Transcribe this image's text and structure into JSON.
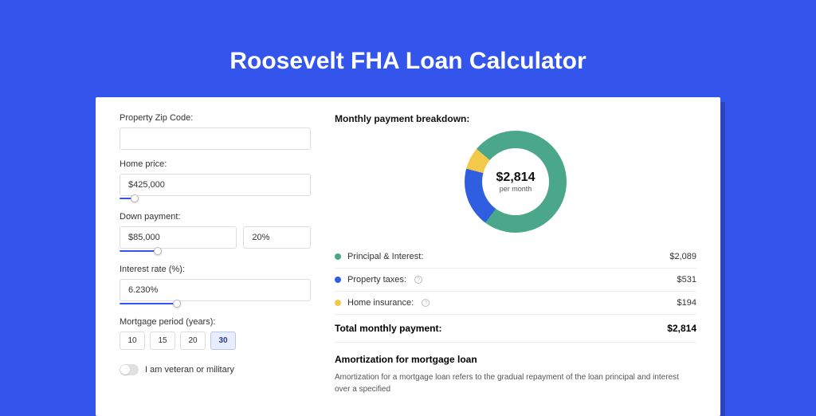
{
  "title": "Roosevelt FHA Loan Calculator",
  "colors": {
    "page_bg": "#3455eb",
    "card_bg": "#ffffff",
    "accent": "#3455eb"
  },
  "form": {
    "zip": {
      "label": "Property Zip Code:",
      "value": ""
    },
    "home_price": {
      "label": "Home price:",
      "value": "$425,000",
      "slider_pct": 8
    },
    "down_payment": {
      "label": "Down payment:",
      "amount": "$85,000",
      "pct": "20%",
      "slider_pct": 20
    },
    "interest_rate": {
      "label": "Interest rate (%):",
      "value": "6.230%",
      "slider_pct": 30
    },
    "mortgage_period": {
      "label": "Mortgage period (years):",
      "options": [
        "10",
        "15",
        "20",
        "30"
      ],
      "active": "30"
    },
    "veteran": {
      "label": "I am veteran or military",
      "on": false
    }
  },
  "breakdown": {
    "heading": "Monthly payment breakdown:",
    "donut": {
      "value": "$2,814",
      "sub": "per month",
      "slices": [
        {
          "label": "Principal & Interest:",
          "value": "$2,089",
          "color": "#4aa789",
          "pct": 74
        },
        {
          "label": "Property taxes:",
          "value": "$531",
          "color": "#2f5fe0",
          "pct": 19,
          "info": true
        },
        {
          "label": "Home insurance:",
          "value": "$194",
          "color": "#f3c94b",
          "pct": 7,
          "info": true
        }
      ]
    },
    "total": {
      "label": "Total monthly payment:",
      "value": "$2,814"
    }
  },
  "amortization": {
    "heading": "Amortization for mortgage loan",
    "text": "Amortization for a mortgage loan refers to the gradual repayment of the loan principal and interest over a specified"
  }
}
